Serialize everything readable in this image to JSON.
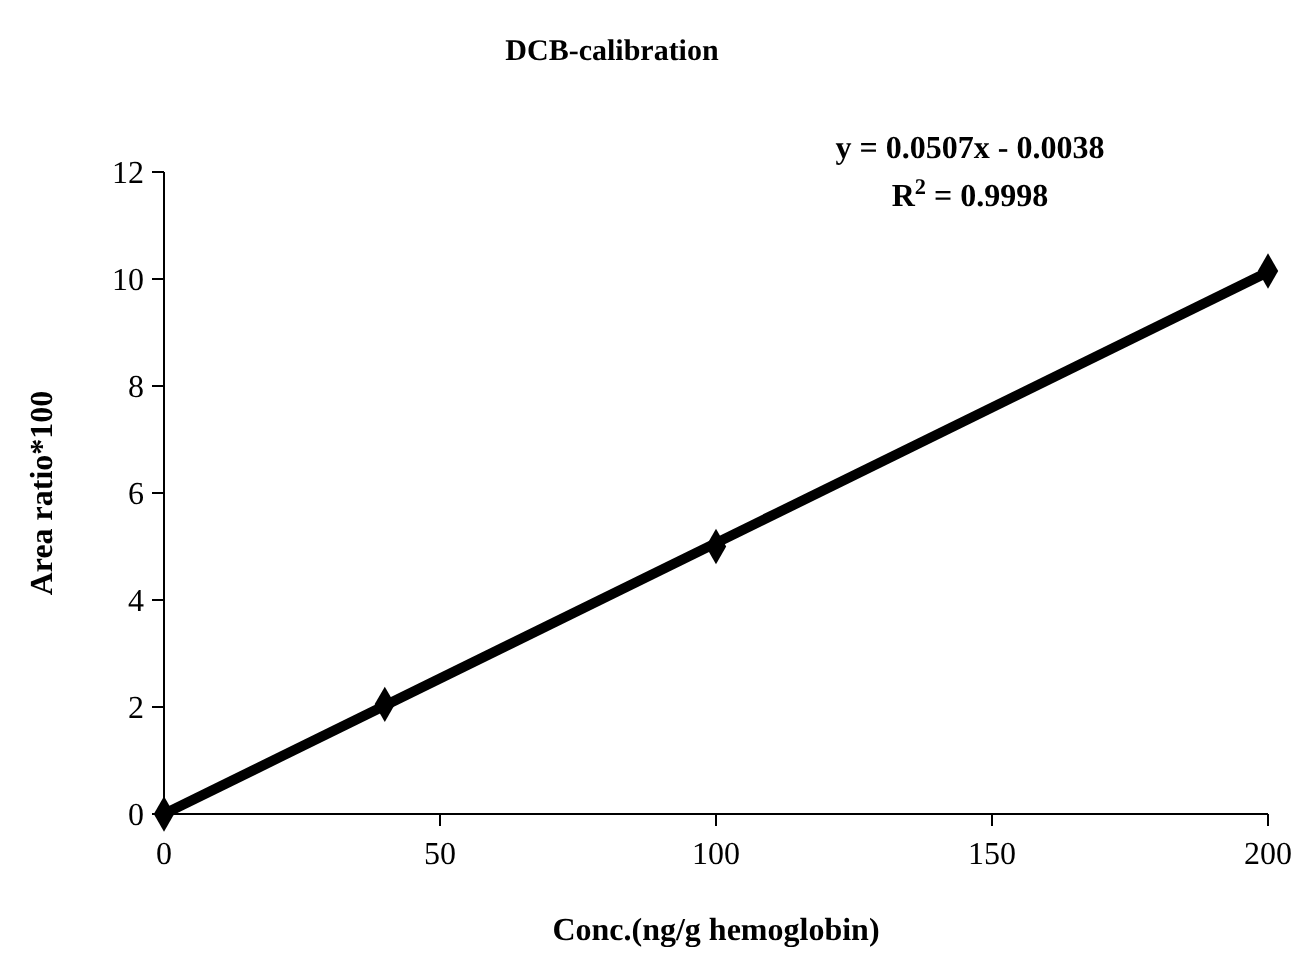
{
  "chart_data": {
    "type": "scatter",
    "title": "DCB-calibration",
    "xlabel": "Conc.(ng/g hemoglobin)",
    "ylabel": "Area ratio*100",
    "xlim": [
      0,
      200
    ],
    "xticks": [
      0,
      50,
      100,
      150,
      200
    ],
    "ylim": [
      0,
      12
    ],
    "yticks": [
      0,
      2,
      4,
      6,
      8,
      10,
      12
    ],
    "grid": false,
    "annotations": [
      "y = 0.0507x - 0.0038",
      "R$^{2}$ = 0.9998"
    ],
    "series": [
      {
        "type": "scatter",
        "color": "#000000",
        "marker": "diamond",
        "x": [
          0,
          40,
          100,
          200
        ],
        "values": [
          0,
          2.05,
          5.0,
          10.15
        ]
      },
      {
        "type": "line",
        "color": "#000000",
        "line_style": "solid",
        "marker": "none",
        "x": [
          0,
          200
        ],
        "values": [
          0,
          10.13
        ]
      }
    ]
  }
}
